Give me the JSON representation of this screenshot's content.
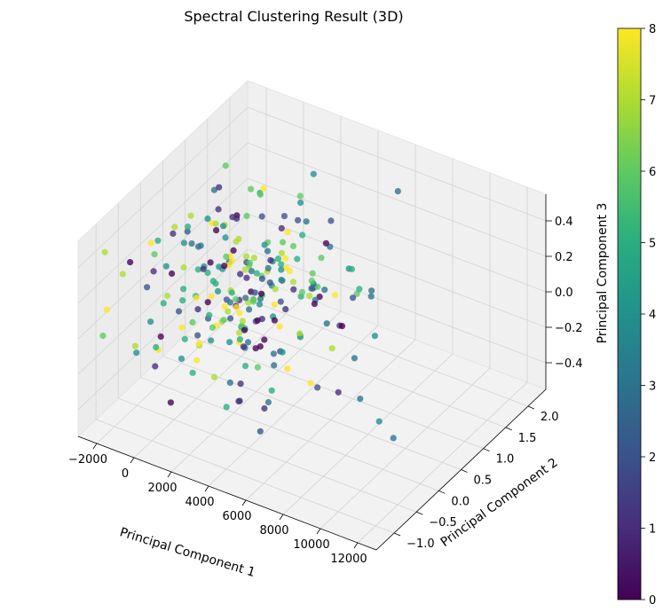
{
  "chart_data": {
    "type": "scatter",
    "projection": "3d",
    "title": "Spectral Clustering Result (3D)",
    "xlabel": "Principal Component 1",
    "ylabel": "Principal Component 2",
    "zlabel": "Principal Component 3",
    "xlim": [
      -3000,
      13000
    ],
    "ylim": [
      -1.4,
      2.4
    ],
    "zlim": [
      -0.55,
      0.55
    ],
    "xticks": [
      -2000,
      0,
      2000,
      4000,
      6000,
      8000,
      10000,
      12000
    ],
    "xtick_labels": [
      "−2000",
      "0",
      "2000",
      "4000",
      "6000",
      "8000",
      "10000",
      "12000"
    ],
    "yticks": [
      -1.0,
      -0.5,
      0.0,
      0.5,
      1.0,
      1.5,
      2.0
    ],
    "ytick_labels": [
      "−1.0",
      "−0.5",
      "0.0",
      "0.5",
      "1.0",
      "1.5",
      "2.0"
    ],
    "zticks": [
      -0.4,
      -0.2,
      0.0,
      0.2,
      0.4
    ],
    "ztick_labels": [
      "−0.4",
      "−0.2",
      "0.0",
      "0.2",
      "0.4"
    ],
    "colormap": "viridis",
    "colorbar": {
      "min": 0,
      "max": 8,
      "ticks": [
        0,
        1,
        2,
        3,
        4,
        5,
        6,
        7,
        8
      ],
      "tick_labels": [
        "0",
        "1",
        "2",
        "3",
        "4",
        "5",
        "6",
        "7",
        "8"
      ],
      "colors": [
        "#440154",
        "#472d7b",
        "#3b528b",
        "#2c728e",
        "#21918c",
        "#28ae80",
        "#5ec962",
        "#addc30",
        "#fde725"
      ]
    },
    "grid": true,
    "pane_color": "#f2f2f2",
    "points": [
      {
        "x": 6500,
        "y": 1.8,
        "z": 0.45,
        "cluster": 3
      },
      {
        "x": 8000,
        "y": 0.2,
        "z": -0.05,
        "cluster": 3
      },
      {
        "x": 9500,
        "y": -0.3,
        "z": -0.1,
        "cluster": 3
      },
      {
        "x": 11000,
        "y": -0.5,
        "z": -0.12,
        "cluster": 4
      },
      {
        "x": 12000,
        "y": -0.6,
        "z": -0.15,
        "cluster": 3
      },
      {
        "x": 7000,
        "y": 1.0,
        "z": 0.1,
        "cluster": 3
      },
      {
        "x": 6500,
        "y": 1.2,
        "z": 0.0,
        "cluster": 3
      },
      {
        "x": 6000,
        "y": 1.0,
        "z": 0.02,
        "cluster": 2
      },
      {
        "x": 4000,
        "y": 0.5,
        "z": 0.35,
        "cluster": 6
      },
      {
        "x": 3500,
        "y": 1.0,
        "z": 0.35,
        "cluster": 3
      },
      {
        "x": 2800,
        "y": 0.8,
        "z": 0.4,
        "cluster": 2
      },
      {
        "x": 2500,
        "y": 1.0,
        "z": 0.25,
        "cluster": 8
      },
      {
        "x": 1500,
        "y": 0.5,
        "z": 0.42,
        "cluster": 6
      },
      {
        "x": 1000,
        "y": 0.8,
        "z": 0.48,
        "cluster": 6
      },
      {
        "x": 500,
        "y": 0.6,
        "z": 0.35,
        "cluster": 1
      },
      {
        "x": -500,
        "y": 0.7,
        "z": 0.33,
        "cluster": 1
      },
      {
        "x": 0,
        "y": 0.9,
        "z": 0.25,
        "cluster": 1
      }
    ],
    "cloud_seed": 7,
    "cloud_count": 230,
    "cloud_center": {
      "x": 1500,
      "y": 0.4,
      "z": 0.0
    },
    "cloud_spread": {
      "x": 2200,
      "y": 0.55,
      "z": 0.22
    }
  }
}
